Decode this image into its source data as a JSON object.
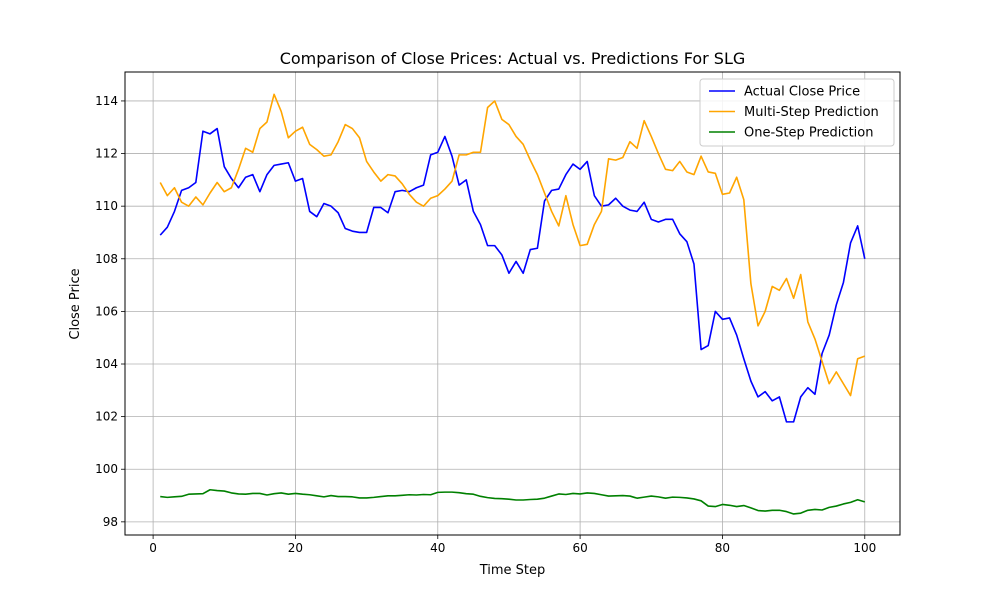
{
  "chart_data": {
    "type": "line",
    "title": "Comparison of Close Prices: Actual vs. Predictions For SLG",
    "xlabel": "Time Step",
    "ylabel": "Close Price",
    "xlim": [
      -3.95,
      104.95
    ],
    "ylim": [
      97.5,
      115.1
    ],
    "xticks": [
      0,
      20,
      40,
      60,
      80,
      100
    ],
    "yticks": [
      98,
      100,
      102,
      104,
      106,
      108,
      110,
      112,
      114
    ],
    "grid": true,
    "legend_position": "top-right",
    "x": [
      1,
      2,
      3,
      4,
      5,
      6,
      7,
      8,
      9,
      10,
      11,
      12,
      13,
      14,
      15,
      16,
      17,
      18,
      19,
      20,
      21,
      22,
      23,
      24,
      25,
      26,
      27,
      28,
      29,
      30,
      31,
      32,
      33,
      34,
      35,
      36,
      37,
      38,
      39,
      40,
      41,
      42,
      43,
      44,
      45,
      46,
      47,
      48,
      49,
      50,
      51,
      52,
      53,
      54,
      55,
      56,
      57,
      58,
      59,
      60,
      61,
      62,
      63,
      64,
      65,
      66,
      67,
      68,
      69,
      70,
      71,
      72,
      73,
      74,
      75,
      76,
      77,
      78,
      79,
      80,
      81,
      82,
      83,
      84,
      85,
      86,
      87,
      88,
      89,
      90,
      91,
      92,
      93,
      94,
      95,
      96,
      97,
      98,
      99,
      100
    ],
    "series": [
      {
        "name": "Actual Close Price",
        "color": "#0000ff",
        "values": [
          108.9,
          109.2,
          109.8,
          110.6,
          110.7,
          110.9,
          112.85,
          112.75,
          112.95,
          111.5,
          111.05,
          110.7,
          111.1,
          111.2,
          110.55,
          111.2,
          111.55,
          111.6,
          111.65,
          110.95,
          111.05,
          109.8,
          109.6,
          110.1,
          110.0,
          109.75,
          109.15,
          109.05,
          109.0,
          109.0,
          109.95,
          109.95,
          109.75,
          110.55,
          110.6,
          110.55,
          110.7,
          110.8,
          111.95,
          112.05,
          112.65,
          111.9,
          110.8,
          111.0,
          109.8,
          109.3,
          108.5,
          108.5,
          108.15,
          107.45,
          107.9,
          107.45,
          108.35,
          108.4,
          110.2,
          110.6,
          110.65,
          111.2,
          111.6,
          111.4,
          111.7,
          110.4,
          110.0,
          110.05,
          110.3,
          110.0,
          109.85,
          109.8,
          110.15,
          109.5,
          109.4,
          109.5,
          109.5,
          108.95,
          108.65,
          107.8,
          104.55,
          104.7,
          106.0,
          105.7,
          105.75,
          105.1,
          104.2,
          103.35,
          102.75,
          102.95,
          102.6,
          102.75,
          101.8,
          101.8,
          102.75,
          103.1,
          102.85,
          104.4,
          105.1,
          106.25,
          107.1,
          108.6,
          109.25,
          108.0
        ]
      },
      {
        "name": "Multi-Step Prediction",
        "color": "#ffa500",
        "values": [
          110.9,
          110.4,
          110.7,
          110.15,
          110.0,
          110.35,
          110.05,
          110.5,
          110.9,
          110.55,
          110.7,
          111.4,
          112.2,
          112.05,
          112.95,
          113.2,
          114.25,
          113.6,
          112.6,
          112.85,
          113.0,
          112.35,
          112.15,
          111.9,
          111.95,
          112.45,
          113.1,
          112.95,
          112.6,
          111.7,
          111.3,
          110.95,
          111.2,
          111.15,
          110.85,
          110.45,
          110.15,
          110.0,
          110.3,
          110.4,
          110.65,
          110.95,
          111.95,
          111.95,
          112.05,
          112.05,
          113.75,
          114.0,
          113.3,
          113.1,
          112.65,
          112.35,
          111.75,
          111.2,
          110.5,
          109.8,
          109.25,
          110.4,
          109.3,
          108.5,
          108.55,
          109.3,
          109.8,
          111.8,
          111.75,
          111.85,
          112.45,
          112.2,
          113.25,
          112.65,
          112.0,
          111.4,
          111.35,
          111.7,
          111.3,
          111.2,
          111.9,
          111.3,
          111.25,
          110.45,
          110.5,
          111.1,
          110.25,
          107.05,
          105.45,
          106.0,
          106.95,
          106.8,
          107.25,
          106.5,
          107.4,
          105.6,
          104.95,
          104.1,
          103.25,
          103.7,
          103.25,
          102.8,
          104.2,
          104.3
        ]
      },
      {
        "name": "One-Step Prediction",
        "color": "#008000",
        "values": [
          98.96,
          98.93,
          98.95,
          98.97,
          99.05,
          99.06,
          99.07,
          99.22,
          99.19,
          99.17,
          99.1,
          99.06,
          99.05,
          99.08,
          99.08,
          99.02,
          99.07,
          99.1,
          99.05,
          99.08,
          99.05,
          99.03,
          98.99,
          98.95,
          99.0,
          98.96,
          98.96,
          98.95,
          98.91,
          98.91,
          98.93,
          98.96,
          98.99,
          98.99,
          99.01,
          99.03,
          99.02,
          99.04,
          99.03,
          99.12,
          99.13,
          99.13,
          99.11,
          99.07,
          99.05,
          98.97,
          98.92,
          98.89,
          98.88,
          98.86,
          98.83,
          98.83,
          98.85,
          98.86,
          98.9,
          98.98,
          99.06,
          99.04,
          99.08,
          99.06,
          99.1,
          99.08,
          99.03,
          98.98,
          98.99,
          99.0,
          98.98,
          98.9,
          98.94,
          98.98,
          98.95,
          98.9,
          98.94,
          98.93,
          98.91,
          98.87,
          98.8,
          98.6,
          98.58,
          98.66,
          98.63,
          98.58,
          98.62,
          98.53,
          98.43,
          98.41,
          98.44,
          98.44,
          98.39,
          98.3,
          98.33,
          98.44,
          98.47,
          98.45,
          98.55,
          98.6,
          98.68,
          98.74,
          98.84,
          98.76
        ]
      }
    ]
  }
}
